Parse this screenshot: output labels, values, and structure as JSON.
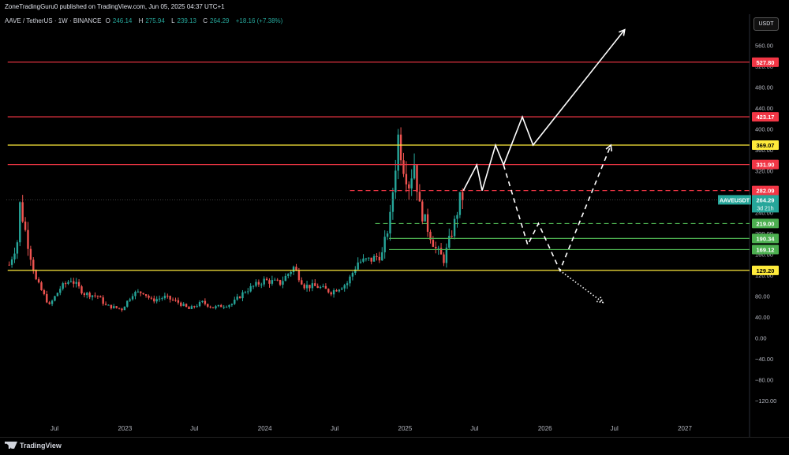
{
  "header": {
    "published": "ZoneTradingGuru0 published on TradingView.com, Jun 05, 2025 04:37 UTC+1",
    "symbol_line": "AAVE / TetherUS · 1W · BINANCE",
    "open_label": "O",
    "open": "246.14",
    "high_label": "H",
    "high": "275.94",
    "low_label": "L",
    "low": "239.13",
    "close_label": "C",
    "close": "264.29",
    "change": "+18.16 (+7.38%)",
    "currency": "USDT"
  },
  "footer": {
    "brand": "TradingView"
  },
  "colors": {
    "background": "#000000",
    "resistance": "#f23645",
    "key_level": "#ffeb3b",
    "support": "#4caf50",
    "candle_up": "#26a69a",
    "candle_down": "#ef5350",
    "projection": "#ffffff"
  },
  "chart_data": {
    "type": "candlestick",
    "symbol": "AAVEUSDT",
    "timeframe": "1W",
    "y_axis": {
      "ylim": [
        -135,
        590
      ],
      "ticks": [
        -120,
        -80,
        -40,
        0,
        40,
        80,
        120,
        160,
        200,
        240,
        280,
        320,
        360,
        400,
        440,
        480,
        520,
        560
      ],
      "tick_labels": [
        "−120.00",
        "−80.00",
        "−40.00",
        "0.00",
        "40.00",
        "80.00",
        "120.00",
        "160.00",
        "200.00",
        "240.00",
        "280.00",
        "320.00",
        "360.00",
        "400.00",
        "440.00",
        "480.00",
        "520.00",
        "560.00"
      ]
    },
    "x_axis": {
      "ticks": [
        {
          "date": "2022-07-01",
          "label": "Jul"
        },
        {
          "date": "2023-01-01",
          "label": "2023"
        },
        {
          "date": "2023-07-01",
          "label": "Jul"
        },
        {
          "date": "2024-01-01",
          "label": "2024"
        },
        {
          "date": "2024-07-01",
          "label": "Jul"
        },
        {
          "date": "2025-01-01",
          "label": "2025"
        },
        {
          "date": "2025-07-01",
          "label": "Jul"
        },
        {
          "date": "2026-01-01",
          "label": "2026"
        },
        {
          "date": "2026-07-01",
          "label": "Jul"
        },
        {
          "date": "2027-01-01",
          "label": "2027"
        }
      ]
    },
    "levels": [
      {
        "price": 527.8,
        "label": "527.80",
        "color": "#f23645",
        "style": "solid",
        "from_date": "2022-03-01"
      },
      {
        "price": 423.17,
        "label": "423.17",
        "color": "#f23645",
        "style": "solid",
        "from_date": "2022-03-01"
      },
      {
        "price": 369.07,
        "label": "369.07",
        "color": "#ffeb3b",
        "style": "solid",
        "from_date": "2022-03-01"
      },
      {
        "price": 331.9,
        "label": "331.90",
        "color": "#f23645",
        "style": "solid",
        "from_date": "2022-03-01"
      },
      {
        "price": 282.09,
        "label": "282.09",
        "color": "#f23645",
        "style": "dashed",
        "from_date": "2024-08-10"
      },
      {
        "price": 219.0,
        "label": "219.00",
        "color": "#4caf50",
        "style": "dashed",
        "from_date": "2024-10-15"
      },
      {
        "price": 190.34,
        "label": "190.34",
        "color": "#4caf50",
        "style": "solid",
        "from_date": "2024-11-20"
      },
      {
        "price": 169.12,
        "label": "169.12",
        "color": "#4caf50",
        "style": "solid",
        "from_date": "2024-11-20"
      },
      {
        "price": 129.2,
        "label": "129.20",
        "color": "#ffeb3b",
        "style": "solid",
        "from_date": "2022-03-01"
      }
    ],
    "last_price": {
      "symbol": "AAVEUSDT",
      "value": "264.29",
      "countdown": "3d 21h",
      "price": 264.29
    },
    "candle_path": [
      [
        "2022-03-05",
        140
      ],
      [
        "2022-03-26",
        185
      ],
      [
        "2022-04-02",
        255
      ],
      [
        "2022-04-23",
        180
      ],
      [
        "2022-05-14",
        110
      ],
      [
        "2022-06-18",
        62
      ],
      [
        "2022-07-16",
        95
      ],
      [
        "2022-08-13",
        112
      ],
      [
        "2022-09-17",
        85
      ],
      [
        "2022-10-22",
        80
      ],
      [
        "2022-11-12",
        62
      ],
      [
        "2022-12-24",
        55
      ],
      [
        "2023-01-21",
        85
      ],
      [
        "2023-02-18",
        88
      ],
      [
        "2023-03-11",
        72
      ],
      [
        "2023-04-15",
        78
      ],
      [
        "2023-05-20",
        68
      ],
      [
        "2023-06-17",
        55
      ],
      [
        "2023-07-22",
        68
      ],
      [
        "2023-08-19",
        58
      ],
      [
        "2023-10-07",
        65
      ],
      [
        "2023-11-11",
        90
      ],
      [
        "2023-12-30",
        110
      ],
      [
        "2024-02-10",
        105
      ],
      [
        "2024-03-16",
        135
      ],
      [
        "2024-04-13",
        100
      ],
      [
        "2024-05-18",
        98
      ],
      [
        "2024-06-22",
        88
      ],
      [
        "2024-08-03",
        105
      ],
      [
        "2024-08-31",
        145
      ],
      [
        "2024-10-05",
        150
      ],
      [
        "2024-11-02",
        160
      ],
      [
        "2024-11-23",
        230
      ],
      [
        "2024-12-14",
        385
      ],
      [
        "2024-12-28",
        330
      ],
      [
        "2025-01-11",
        295
      ],
      [
        "2025-01-25",
        335
      ],
      [
        "2025-02-08",
        250
      ],
      [
        "2025-03-01",
        210
      ],
      [
        "2025-03-22",
        170
      ],
      [
        "2025-04-12",
        150
      ],
      [
        "2025-04-26",
        185
      ],
      [
        "2025-05-10",
        220
      ],
      [
        "2025-05-24",
        265
      ],
      [
        "2025-06-01",
        264
      ]
    ],
    "projections": [
      {
        "style": "solid",
        "points": [
          [
            "2025-06-02",
            282
          ],
          [
            "2025-07-07",
            331
          ],
          [
            "2025-07-21",
            282
          ],
          [
            "2025-08-25",
            369
          ],
          [
            "2025-09-15",
            331
          ],
          [
            "2025-11-03",
            423
          ],
          [
            "2025-12-01",
            369
          ],
          [
            "2026-07-28",
            590
          ]
        ]
      },
      {
        "style": "dashed",
        "points": [
          [
            "2025-09-15",
            331
          ],
          [
            "2025-11-17",
            178
          ],
          [
            "2025-12-15",
            219
          ],
          [
            "2026-02-09",
            129
          ],
          [
            "2026-06-22",
            369
          ]
        ]
      },
      {
        "style": "dotted",
        "points": [
          [
            "2026-02-09",
            129
          ],
          [
            "2026-06-01",
            68
          ]
        ]
      }
    ]
  }
}
